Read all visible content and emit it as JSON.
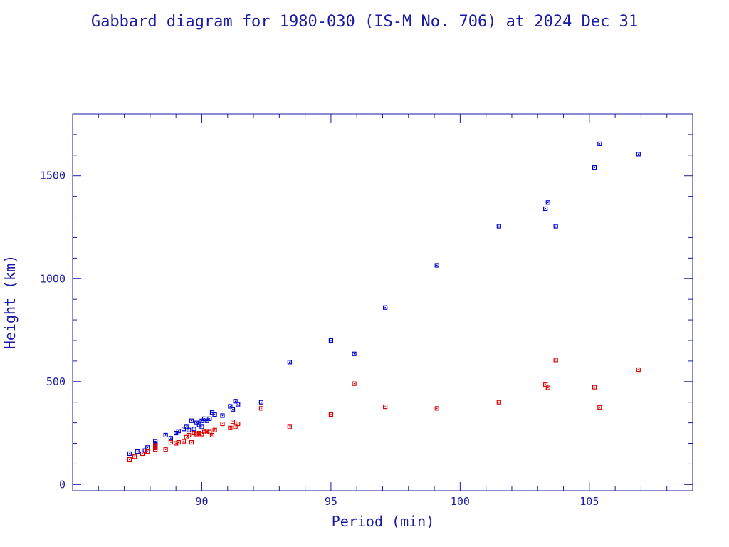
{
  "chart_data": {
    "type": "scatter",
    "title": "Gabbard diagram for 1980-030 (IS-M No. 706) at 2024 Dec 31",
    "xlabel": "Period (min)",
    "ylabel": "Height (km)",
    "xlim": [
      85,
      109
    ],
    "ylim": [
      -30,
      1800
    ],
    "x_ticks": [
      90,
      95,
      100,
      105
    ],
    "y_ticks": [
      0,
      500,
      1000,
      1500
    ],
    "x_tick_labels": [
      "90",
      "95",
      "100",
      "105"
    ],
    "y_tick_labels": [
      "0",
      "500",
      "1000",
      "1500"
    ],
    "grid": false,
    "legend": false,
    "colors": {
      "axis": "#1a1aa6",
      "apogee": "#0000cc",
      "perigee": "#dd0000"
    },
    "series": [
      {
        "role": "apogee",
        "color": "#0000cc",
        "x": [
          87.2,
          87.5,
          87.8,
          87.9,
          88.2,
          88.2,
          88.2,
          88.2,
          88.6,
          88.8,
          89.0,
          89.1,
          89.3,
          89.4,
          89.5,
          89.6,
          89.7,
          89.8,
          89.9,
          90.0,
          90.0,
          90.1,
          90.2,
          90.3,
          90.4,
          90.5,
          90.8,
          91.1,
          91.2,
          91.3,
          91.4,
          92.3,
          93.4,
          95.0,
          95.9,
          97.1,
          99.1,
          101.5,
          103.3,
          103.4,
          103.7,
          105.2,
          105.4,
          106.9
        ],
        "y": [
          150,
          160,
          165,
          180,
          185,
          195,
          200,
          210,
          240,
          225,
          250,
          260,
          270,
          280,
          265,
          310,
          270,
          300,
          290,
          310,
          280,
          320,
          310,
          320,
          350,
          340,
          335,
          380,
          365,
          405,
          390,
          400,
          595,
          700,
          635,
          860,
          1065,
          1255,
          1340,
          1370,
          1255,
          1540,
          1655,
          1605
        ]
      },
      {
        "role": "perigee",
        "color": "#dd0000",
        "x": [
          87.2,
          87.4,
          87.7,
          87.9,
          88.2,
          88.2,
          88.2,
          88.2,
          88.6,
          88.8,
          89.0,
          89.1,
          89.3,
          89.4,
          89.5,
          89.6,
          89.7,
          89.8,
          89.9,
          90.0,
          90.1,
          90.2,
          90.3,
          90.4,
          90.5,
          90.8,
          91.1,
          91.2,
          91.3,
          91.4,
          92.3,
          93.4,
          95.0,
          95.9,
          97.1,
          99.1,
          101.5,
          103.3,
          103.4,
          103.7,
          105.2,
          105.4,
          106.9
        ],
        "y": [
          122,
          135,
          150,
          160,
          170,
          178,
          185,
          190,
          170,
          205,
          200,
          205,
          210,
          230,
          240,
          205,
          250,
          245,
          250,
          245,
          255,
          260,
          255,
          240,
          265,
          295,
          275,
          305,
          280,
          295,
          370,
          280,
          340,
          490,
          378,
          370,
          400,
          485,
          470,
          605,
          473,
          375,
          558
        ]
      }
    ]
  }
}
